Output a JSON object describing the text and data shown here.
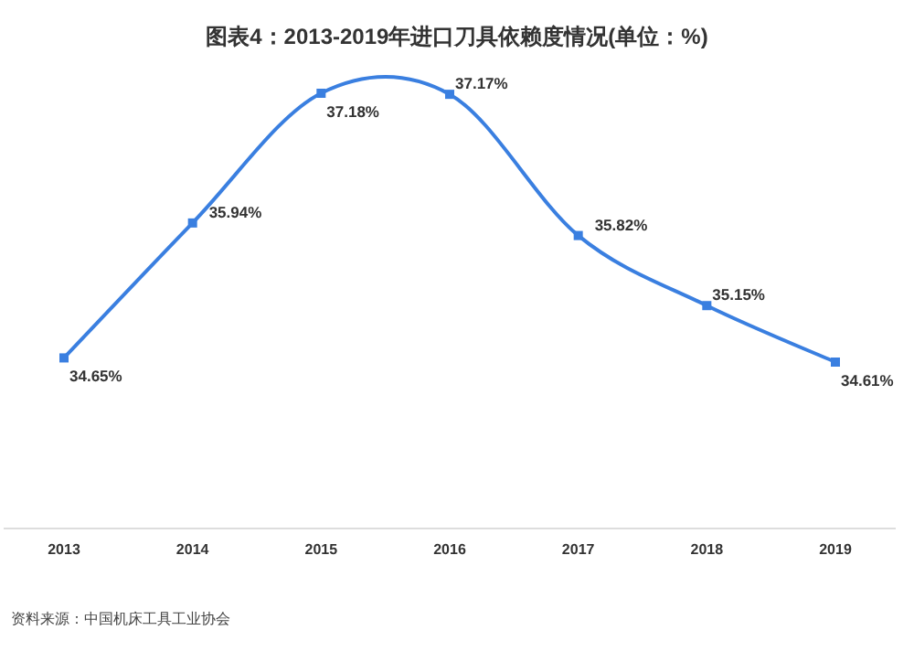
{
  "chart_data": {
    "type": "line",
    "title": "图表4：2013-2019年进口刀具依赖度情况(单位：%)",
    "categories": [
      "2013",
      "2014",
      "2015",
      "2016",
      "2017",
      "2018",
      "2019"
    ],
    "series": [
      {
        "color": "#3a7fe0",
        "values": [
          34.65,
          35.94,
          37.18,
          37.17,
          35.82,
          35.15,
          34.61
        ],
        "value_labels": [
          "34.65%",
          "35.94%",
          "37.18%",
          "37.17%",
          "35.82%",
          "35.15%",
          "34.61%"
        ]
      }
    ],
    "marker": "square",
    "grid": false,
    "annotations": [
      "资料来源：中国机床工具工业协会"
    ]
  }
}
